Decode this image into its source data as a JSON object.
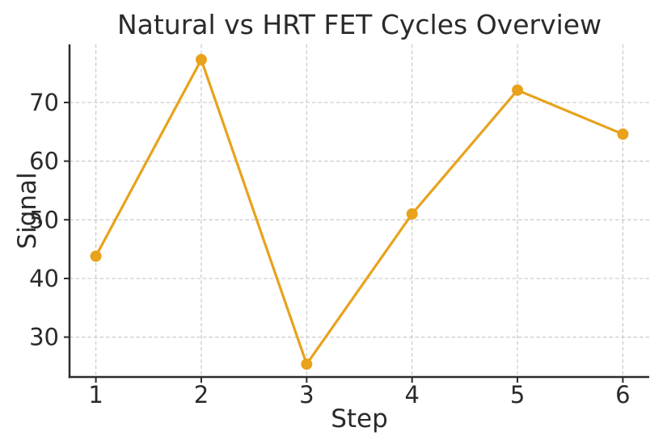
{
  "chart_data": {
    "type": "line",
    "title": "Natural vs HRT FET Cycles Overview",
    "xlabel": "Step",
    "ylabel": "Signal",
    "x": [
      1,
      2,
      3,
      4,
      5,
      6
    ],
    "series": [
      {
        "name": "Signal",
        "values": [
          43.8,
          77.3,
          25.4,
          51.0,
          72.1,
          64.6
        ]
      }
    ],
    "xticks": [
      1,
      2,
      3,
      4,
      5,
      6
    ],
    "yticks": [
      30,
      40,
      50,
      60,
      70
    ],
    "xlim": [
      0.75,
      6.25
    ],
    "ylim": [
      23.2,
      79.9
    ],
    "grid": true,
    "grid_style": "dashed",
    "legend": false,
    "marker": "circle",
    "colors": {
      "line": "#E8A21C",
      "marker": "#E8A21C",
      "grid": "#c9c9c9",
      "spine": "#2b2b2b",
      "text": "#2a2a2a",
      "background": "#ffffff"
    }
  }
}
